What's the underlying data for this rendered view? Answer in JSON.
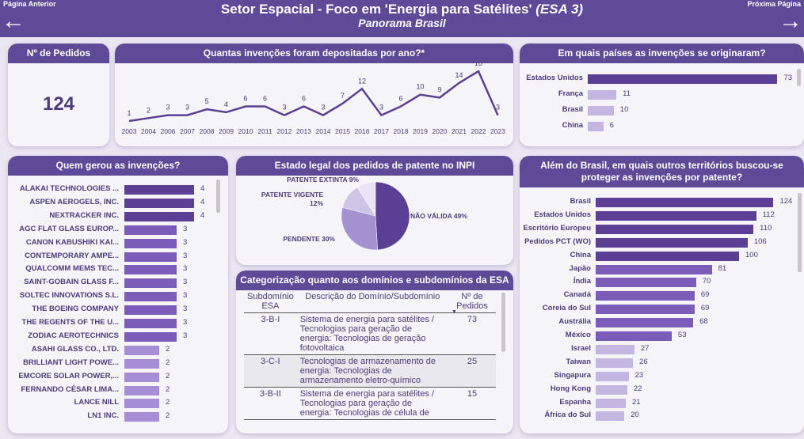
{
  "header": {
    "title": "Setor Espacial - Foco em 'Energia para Satélites'",
    "title_suffix": "(ESA 3)",
    "subtitle": "Panorama Brasil",
    "prev_label": "Página Anterior",
    "next_label": "Próxima Página",
    "prev_icon": "arrow-left-icon",
    "next_icon": "arrow-right-icon"
  },
  "colors": {
    "header": "#5e4a96",
    "dark": "#5a3f94",
    "medium": "#7b5cb8",
    "light": "#a58ed6",
    "lighter": "#c3b7e2"
  },
  "kpi": {
    "title": "Nº de Pedidos",
    "value": "124"
  },
  "chart_data": [
    {
      "type": "line",
      "title": "Quantas invenções foram depositadas por ano?*",
      "x": [
        "2003",
        "2004",
        "2006",
        "2007",
        "2008",
        "2009",
        "2010",
        "2011",
        "2012",
        "2013",
        "2014",
        "2015",
        "2016",
        "2017",
        "2018",
        "2019",
        "2020",
        "2021",
        "2022",
        "2023"
      ],
      "values": [
        1,
        2,
        3,
        3,
        5,
        4,
        6,
        6,
        3,
        6,
        3,
        7,
        12,
        3,
        6,
        10,
        9,
        14,
        18,
        3
      ]
    },
    {
      "type": "bar",
      "orientation": "horizontal",
      "title": "Em quais países as invenções se originaram?",
      "categories": [
        "Estados Unidos",
        "França",
        "Brasil",
        "China"
      ],
      "values": [
        73,
        11,
        10,
        6
      ]
    },
    {
      "type": "bar",
      "orientation": "horizontal",
      "title": "Quem gerou as invenções?",
      "categories": [
        "ALAKAI TECHNOLOGIES ...",
        "ASPEN AEROGELS, INC.",
        "NEXTRACKER INC.",
        "AGC FLAT GLASS EUROP...",
        "CANON KABUSHIKI KAI...",
        "CONTEMPORARY AMPE...",
        "QUALCOMM MEMS TEC...",
        "SAINT-GOBAIN GLASS F...",
        "SOLTEC INNOVATIONS S.L.",
        "THE BOEING COMPANY",
        "THE REGENTS OF THE U...",
        "ZODIAC AEROTECHNICS",
        "ASAHI GLASS CO., LTD.",
        "BRILLIANT LIGHT POWE...",
        "EMCORE SOLAR POWER,...",
        "FERNANDO CÉSAR LIMA...",
        "LANCE NILL",
        "LN1 INC."
      ],
      "values": [
        4,
        4,
        4,
        3,
        3,
        3,
        3,
        3,
        3,
        3,
        3,
        3,
        2,
        2,
        2,
        2,
        2,
        2
      ]
    },
    {
      "type": "pie",
      "title": "Estado legal dos pedidos de patente no INPI",
      "categories": [
        "NÃO VÁLIDA",
        "PENDENTE",
        "PATENTE VIGENTE",
        "PATENTE EXTINTA"
      ],
      "values": [
        49,
        30,
        12,
        9
      ],
      "labels": [
        "NÃO VÁLIDA 49%",
        "PENDENTE 30%",
        "PATENTE VIGENTE 12%",
        "PATENTE EXTINTA 9%"
      ],
      "colors": [
        "#5a3f94",
        "#a492d0",
        "#cdc5e6",
        "#e9e5f4"
      ]
    },
    {
      "type": "bar",
      "orientation": "horizontal",
      "title": "Além do Brasil, em quais outros territórios buscou-se proteger as invenções por patente?",
      "categories": [
        "Brasil",
        "Estados Unidos",
        "Escritório Europeu",
        "Pedidos PCT (WO)",
        "China",
        "Japão",
        "Índia",
        "Canadá",
        "Coreia do Sul",
        "Austrália",
        "México",
        "Israel",
        "Taiwan",
        "Singapura",
        "Hong Kong",
        "Espanha",
        "África do Sul"
      ],
      "values": [
        124,
        112,
        110,
        106,
        100,
        81,
        70,
        69,
        69,
        68,
        53,
        27,
        26,
        23,
        22,
        21,
        20
      ]
    }
  ],
  "table": {
    "title": "Categorização quanto aos domínios e subdomínios da ESA",
    "headers": [
      "Subdomínio ESA",
      "Descrição do Domínio/Subdomínio",
      "Nº de Pedidos"
    ],
    "sort_icon": "sort-desc-icon",
    "rows": [
      {
        "code": "3-B-I",
        "desc": "Sistema de energia para satélites / Tecnologias para geração de energia: Tecnologias de geração fotovoltaica",
        "count": "73"
      },
      {
        "code": "3-C-I",
        "desc": "Tecnologias de armazenamento de energia: Tecnologias de armazenamento eletro-químico",
        "count": "25"
      },
      {
        "code": "3-B-II",
        "desc": "Sistema de energia para satélites / Tecnologias para geração de energia: Tecnologias de célula de",
        "count": "15"
      }
    ]
  }
}
